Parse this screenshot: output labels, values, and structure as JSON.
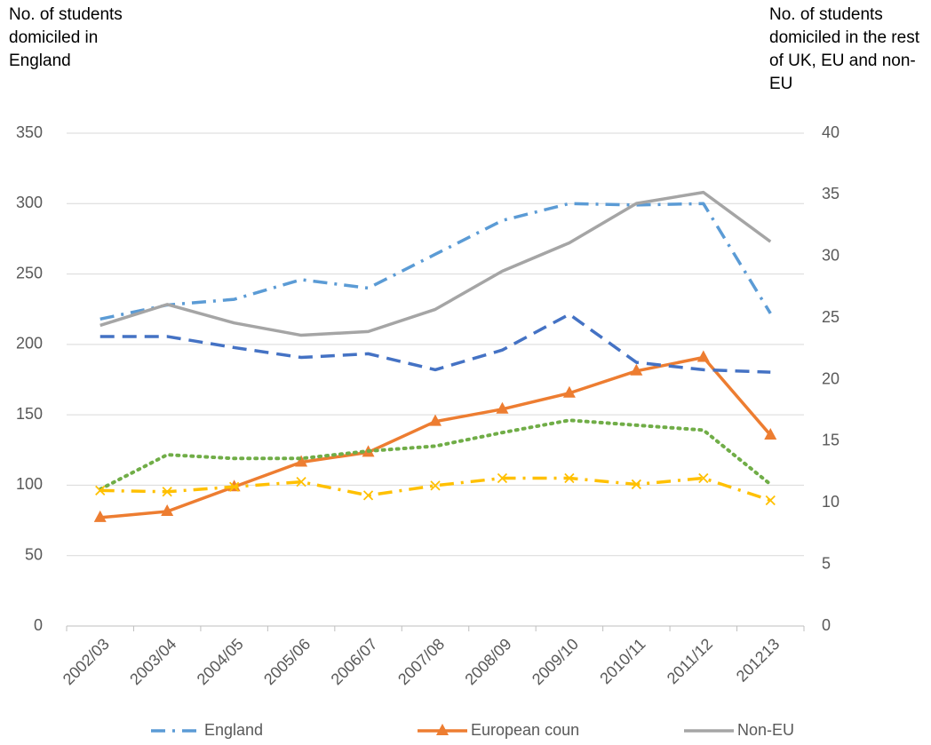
{
  "chart_data": {
    "type": "line",
    "y_label": "No. of students domiciled in England",
    "y2_label": "No. of students domiciled in the rest of UK, EU and non-EU",
    "categories": [
      "2002/03",
      "2003/04",
      "2004/05",
      "2005/06",
      "2006/07",
      "2007/08",
      "2008/09",
      "2009/10",
      "2010/11",
      "2011/12",
      "201213"
    ],
    "ylim": [
      0,
      350
    ],
    "yticks": [
      0,
      50,
      100,
      150,
      200,
      250,
      300,
      350
    ],
    "y2lim": [
      0,
      40
    ],
    "y2ticks": [
      0,
      5,
      10,
      15,
      20,
      25,
      30,
      35,
      40
    ],
    "grid": true,
    "legend": "bottom",
    "series": [
      {
        "name": "England",
        "color": "#5b9bd5",
        "dash": "dashdot",
        "values": [
          218,
          228,
          232,
          246,
          240,
          264,
          288,
          300,
          299,
          300,
          222
        ]
      },
      {
        "name": "European coun",
        "color": "#ed7d31",
        "marker": "triangle",
        "axis": "y2",
        "values": [
          8.8,
          9.3,
          11.3,
          13.3,
          14.1,
          16.6,
          17.6,
          18.9,
          20.7,
          21.8,
          15.5
        ]
      },
      {
        "name": "Non-EU",
        "color": "#a5a5a5",
        "axis": "y2",
        "values": [
          24.4,
          26.1,
          24.6,
          23.6,
          23.9,
          25.7,
          28.8,
          31.1,
          34.3,
          35.2,
          31.2
        ]
      },
      {
        "color": "#4472c4",
        "dash": "dash",
        "axis": "y2",
        "values": [
          23.5,
          23.5,
          22.6,
          21.8,
          22.1,
          20.8,
          22.4,
          25.3,
          21.4,
          20.8,
          20.6
        ]
      },
      {
        "color": "#70ad47",
        "dash": "dot",
        "axis": "y2",
        "values": [
          11.1,
          13.9,
          13.6,
          13.6,
          14.2,
          14.6,
          15.7,
          16.7,
          16.3,
          15.9,
          11.5
        ]
      },
      {
        "color": "#ffc000",
        "dash": "dashdot",
        "marker": "x",
        "axis": "y2",
        "values": [
          11.0,
          10.9,
          11.3,
          11.7,
          10.6,
          11.4,
          12.0,
          12.0,
          11.5,
          12.0,
          10.2
        ]
      }
    ]
  }
}
